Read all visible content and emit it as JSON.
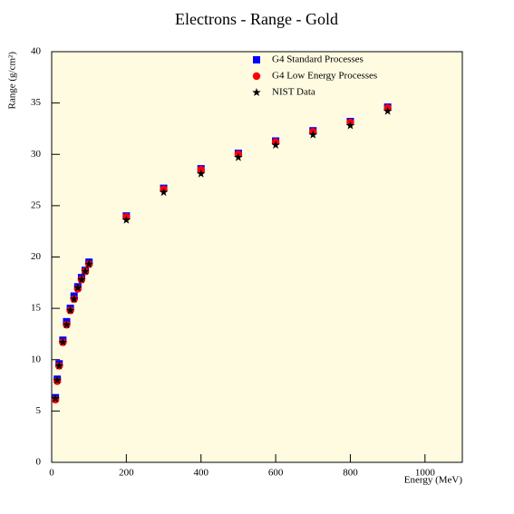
{
  "chart_data": {
    "type": "scatter",
    "title": "Electrons - Range - Gold",
    "xlabel": "Energy (MeV)",
    "ylabel": "Range (g/cm²)",
    "x": [
      10,
      15,
      20,
      30,
      40,
      50,
      60,
      70,
      80,
      90,
      100,
      200,
      300,
      400,
      500,
      600,
      700,
      800,
      900
    ],
    "series": [
      {
        "name": "G4 Standard Processes",
        "color": "#0000ff",
        "marker": "square",
        "values": [
          6.3,
          8.1,
          9.6,
          11.9,
          13.7,
          15.0,
          16.2,
          17.1,
          18.0,
          18.7,
          19.5,
          24.0,
          26.7,
          28.6,
          30.1,
          31.3,
          32.3,
          33.2,
          34.6
        ]
      },
      {
        "name": "G4 Low Energy Processes",
        "color": "#ff0000",
        "marker": "circle",
        "values": [
          6.1,
          7.9,
          9.4,
          11.7,
          13.4,
          14.8,
          15.9,
          16.9,
          17.8,
          18.6,
          19.3,
          23.9,
          26.6,
          28.5,
          30.0,
          31.2,
          32.2,
          33.1,
          34.5
        ]
      },
      {
        "name": "NIST Data",
        "color": "#000000",
        "marker": "star",
        "values": [
          6.2,
          8.0,
          9.4,
          11.7,
          13.4,
          14.8,
          15.9,
          17.0,
          17.8,
          18.6,
          19.3,
          23.6,
          26.3,
          28.1,
          29.7,
          30.9,
          31.9,
          32.8,
          34.2
        ]
      }
    ],
    "xlim": [
      0,
      1100
    ],
    "xticks": [
      0,
      200,
      400,
      600,
      800,
      1000
    ],
    "ylim": [
      0,
      40
    ],
    "yticks": [
      0,
      5,
      10,
      15,
      20,
      25,
      30,
      35,
      40
    ],
    "background": "#fffbe1",
    "legend": "upper right"
  }
}
